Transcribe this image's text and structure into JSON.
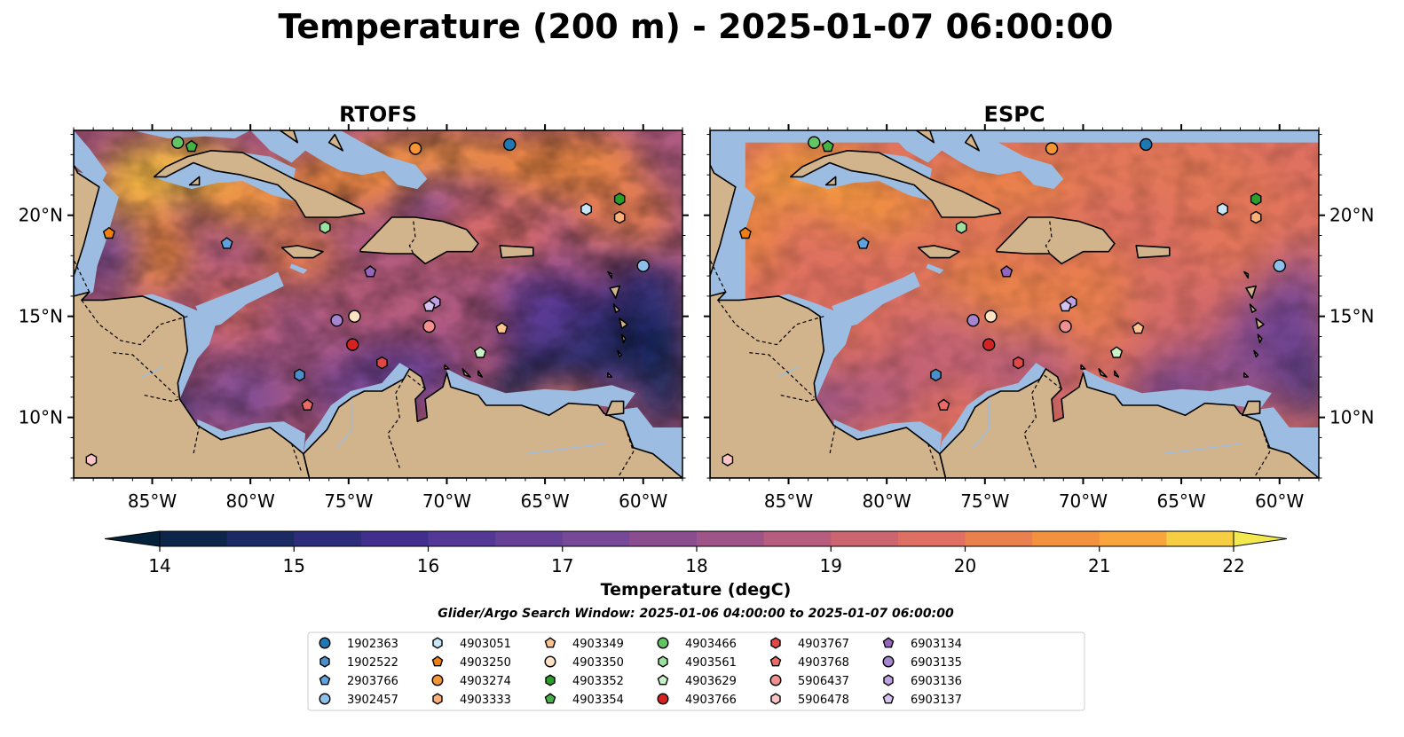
{
  "chart_data": {
    "type": "map",
    "title": "Temperature (200 m) - 2025-01-07 06:00:00",
    "panels": [
      {
        "title": "RTOFS",
        "model": "rtofs"
      },
      {
        "title": "ESPC",
        "model": "espc"
      }
    ],
    "lon_range": [
      -89,
      -58
    ],
    "lat_range": [
      7,
      24.2
    ],
    "lon_ticks": [
      -85,
      -80,
      -75,
      -70,
      -65,
      -60
    ],
    "lon_tick_labels": [
      "85°W",
      "80°W",
      "75°W",
      "70°W",
      "65°W",
      "60°W"
    ],
    "lat_ticks": [
      10,
      15,
      20
    ],
    "lat_tick_labels": [
      "10°N",
      "15°N",
      "20°N"
    ],
    "colorbar": {
      "label": "Temperature (degC)",
      "min": 14,
      "max": 22,
      "step": 0.5,
      "ticks": [
        14,
        15,
        16,
        17,
        18,
        19,
        20,
        21,
        22
      ],
      "tick_labels": [
        "14",
        "15",
        "16",
        "17",
        "18",
        "19",
        "20",
        "21",
        "22"
      ],
      "extend": "both",
      "colormap": "thermal"
    },
    "search_window": "Glider/Argo Search Window: 2025-01-06 04:00:00 to 2025-01-07 06:00:00",
    "floats": [
      {
        "id": "1902363",
        "marker": "circle",
        "color": "#1f77b4",
        "lon": -66.8,
        "lat": 23.5
      },
      {
        "id": "1902522",
        "marker": "hexagon",
        "color": "#4a8fc9",
        "lon": -77.5,
        "lat": 12.1
      },
      {
        "id": "2903766",
        "marker": "pentagon",
        "color": "#5fa2dd",
        "lon": -81.2,
        "lat": 18.6
      },
      {
        "id": "3902457",
        "marker": "circle",
        "color": "#8ec1ea",
        "lon": -60.0,
        "lat": 17.5
      },
      {
        "id": "4903051",
        "marker": "hexagon",
        "color": "#c7e6f7",
        "lon": -62.9,
        "lat": 20.3
      },
      {
        "id": "4903250",
        "marker": "pentagon",
        "color": "#f07f10",
        "lon": -87.2,
        "lat": 19.1
      },
      {
        "id": "4903274",
        "marker": "circle",
        "color": "#f59534",
        "lon": -71.6,
        "lat": 23.3
      },
      {
        "id": "4903333",
        "marker": "hexagon",
        "color": "#fcb077",
        "lon": -61.2,
        "lat": 19.9
      },
      {
        "id": "4903349",
        "marker": "pentagon",
        "color": "#fdc38f",
        "lon": -67.2,
        "lat": 14.4
      },
      {
        "id": "4903350",
        "marker": "circle",
        "color": "#fde2c4",
        "lon": -74.7,
        "lat": 15.0
      },
      {
        "id": "4903352",
        "marker": "hexagon",
        "color": "#2a9e2a",
        "lon": -61.2,
        "lat": 20.8
      },
      {
        "id": "4903354",
        "marker": "pentagon",
        "color": "#44b344",
        "lon": -83.0,
        "lat": 23.4
      },
      {
        "id": "4903466",
        "marker": "circle",
        "color": "#62c462",
        "lon": -83.7,
        "lat": 23.6
      },
      {
        "id": "4903561",
        "marker": "hexagon",
        "color": "#9be09b",
        "lon": -76.2,
        "lat": 19.4
      },
      {
        "id": "4903629",
        "marker": "pentagon",
        "color": "#c9f3c4",
        "lon": -68.3,
        "lat": 13.2
      },
      {
        "id": "4903766",
        "marker": "circle",
        "color": "#d62222",
        "lon": -74.8,
        "lat": 13.6
      },
      {
        "id": "4903767",
        "marker": "hexagon",
        "color": "#e04848",
        "lon": -73.3,
        "lat": 12.7
      },
      {
        "id": "4903768",
        "marker": "pentagon",
        "color": "#ea6a6a",
        "lon": -77.1,
        "lat": 10.6
      },
      {
        "id": "5906437",
        "marker": "circle",
        "color": "#f29090",
        "lon": -70.9,
        "lat": 14.5
      },
      {
        "id": "5906478",
        "marker": "hexagon",
        "color": "#fcc4c4",
        "lon": -88.1,
        "lat": 7.9
      },
      {
        "id": "6903134",
        "marker": "pentagon",
        "color": "#9467bd",
        "lon": -73.9,
        "lat": 17.2
      },
      {
        "id": "6903135",
        "marker": "circle",
        "color": "#a584d0",
        "lon": -75.6,
        "lat": 14.8
      },
      {
        "id": "6903136",
        "marker": "hexagon",
        "color": "#bfa0e0",
        "lon": -70.6,
        "lat": 15.7
      },
      {
        "id": "6903137",
        "marker": "pentagon",
        "color": "#d6c2ef",
        "lon": -70.9,
        "lat": 15.5
      }
    ]
  },
  "colors": {
    "land": "#d2b48c",
    "shelf": "#9cbde1",
    "coastline": "#000000",
    "deep": "#03263b"
  }
}
